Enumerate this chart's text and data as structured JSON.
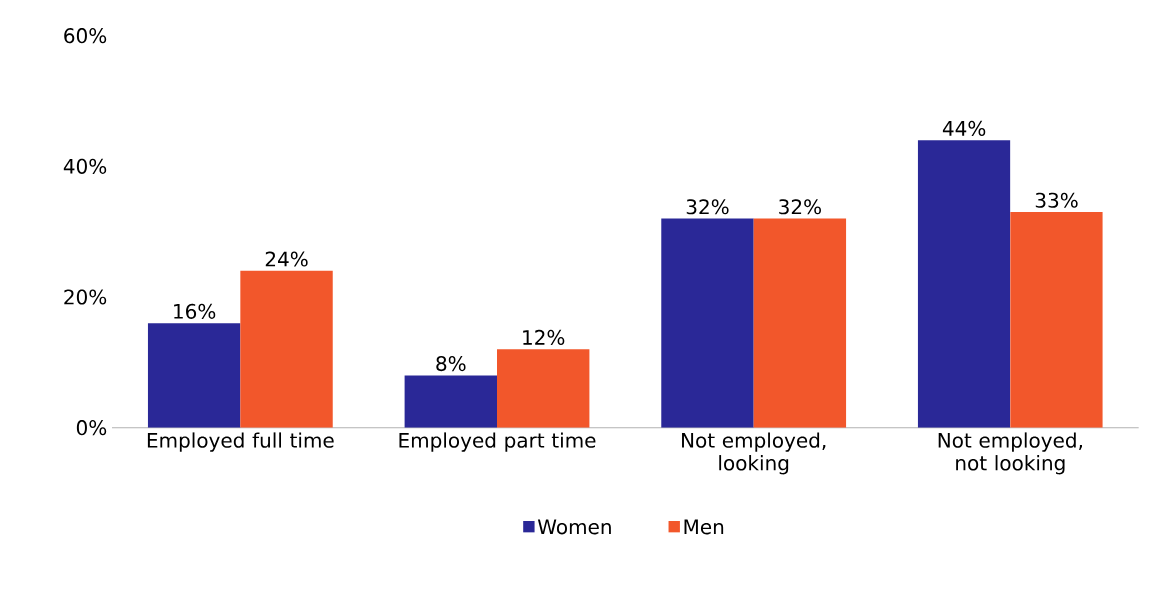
{
  "chart_data": {
    "type": "bar",
    "categories": [
      "Employed full time",
      "Employed part time",
      "Not employed, looking",
      "Not employed, not looking"
    ],
    "series": [
      {
        "name": "Women",
        "color": "#2a2897",
        "values": [
          16,
          8,
          32,
          44
        ],
        "value_labels": [
          "16%",
          "8%",
          "32%",
          "44%"
        ]
      },
      {
        "name": "Men",
        "color": "#f2572b",
        "values": [
          24,
          12,
          32,
          33
        ],
        "value_labels": [
          "24%",
          "12%",
          "32%",
          "33%"
        ]
      }
    ],
    "ylim": [
      0,
      60
    ],
    "yticks": [
      {
        "value": 0,
        "label": "0%"
      },
      {
        "value": 20,
        "label": "20%"
      },
      {
        "value": 40,
        "label": "40%"
      },
      {
        "value": 60,
        "label": "60%"
      }
    ],
    "grid": false,
    "legend": "bottom"
  }
}
